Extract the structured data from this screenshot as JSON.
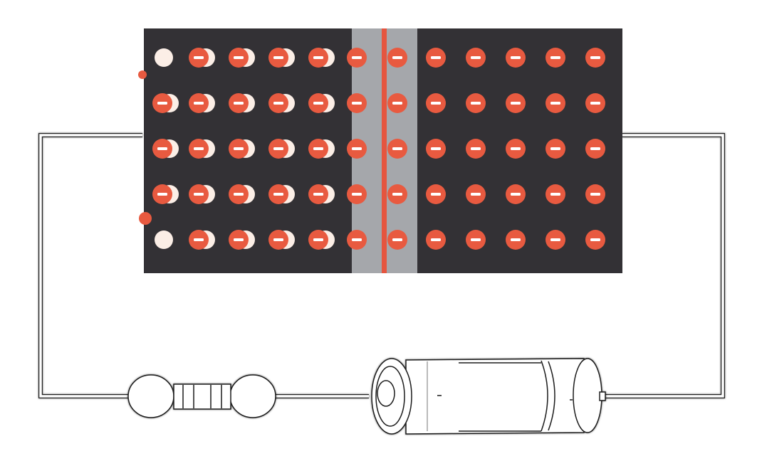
{
  "colors": {
    "background": "#ffffff",
    "panel": "#333135",
    "junction": "#a5a7ab",
    "junction_line": "#e5553f",
    "electron": "#e85a40",
    "hole": "#fbeee6",
    "wire": "#1a1a1a"
  },
  "icons": {
    "electron": "electron-minus-icon",
    "hole": "hole-circle-icon"
  },
  "lattice": {
    "rows": 5,
    "left_region_columns": 5,
    "junction_columns": 2,
    "right_region_columns": 5,
    "holes": [
      [
        0,
        0
      ],
      [
        4,
        0
      ]
    ]
  },
  "components": [
    "semiconductor-panel",
    "circuit-wire",
    "bulb",
    "battery"
  ]
}
